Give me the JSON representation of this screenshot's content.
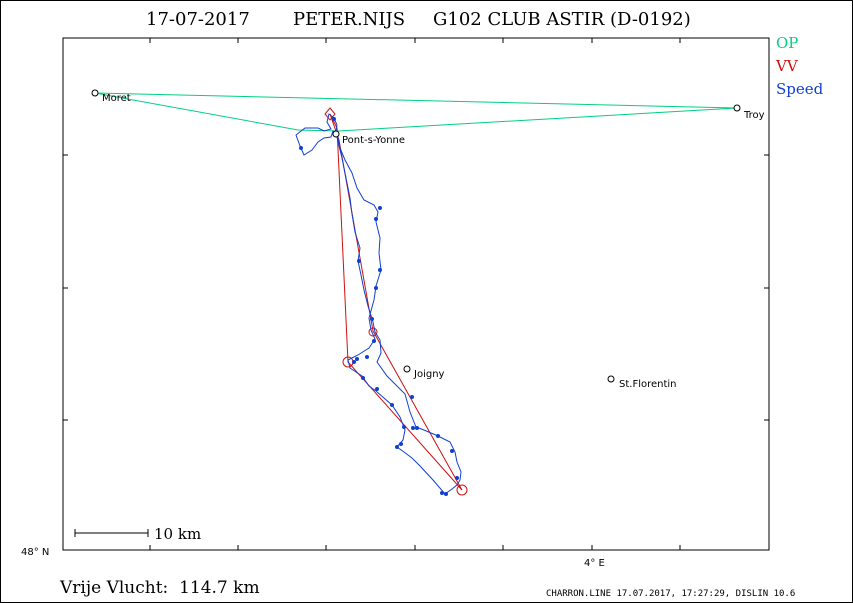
{
  "header": {
    "date": "17-07-2017",
    "pilot": "PETER.NIJS",
    "glider": "G102 CLUB ASTIR (D-0192)"
  },
  "legend": [
    {
      "label": "OP",
      "color": "#00d080"
    },
    {
      "label": "VV",
      "color": "#d01010"
    },
    {
      "label": "Speed",
      "color": "#1040d0"
    }
  ],
  "map": {
    "places": [
      {
        "name": "Moret"
      },
      {
        "name": "Troy"
      },
      {
        "name": "Pont-s-Yonne"
      },
      {
        "name": "Joigny"
      },
      {
        "name": "St.Florentin"
      }
    ],
    "lat_label": "48° N",
    "lon_label": "4° E",
    "scale_label": "10 km"
  },
  "footer": {
    "distance_text": "Vrije Vlucht:  114.7 km",
    "credit": "CHARRON.LINE 17.07.2017, 17:27:29, DISLIN 10.6"
  }
}
